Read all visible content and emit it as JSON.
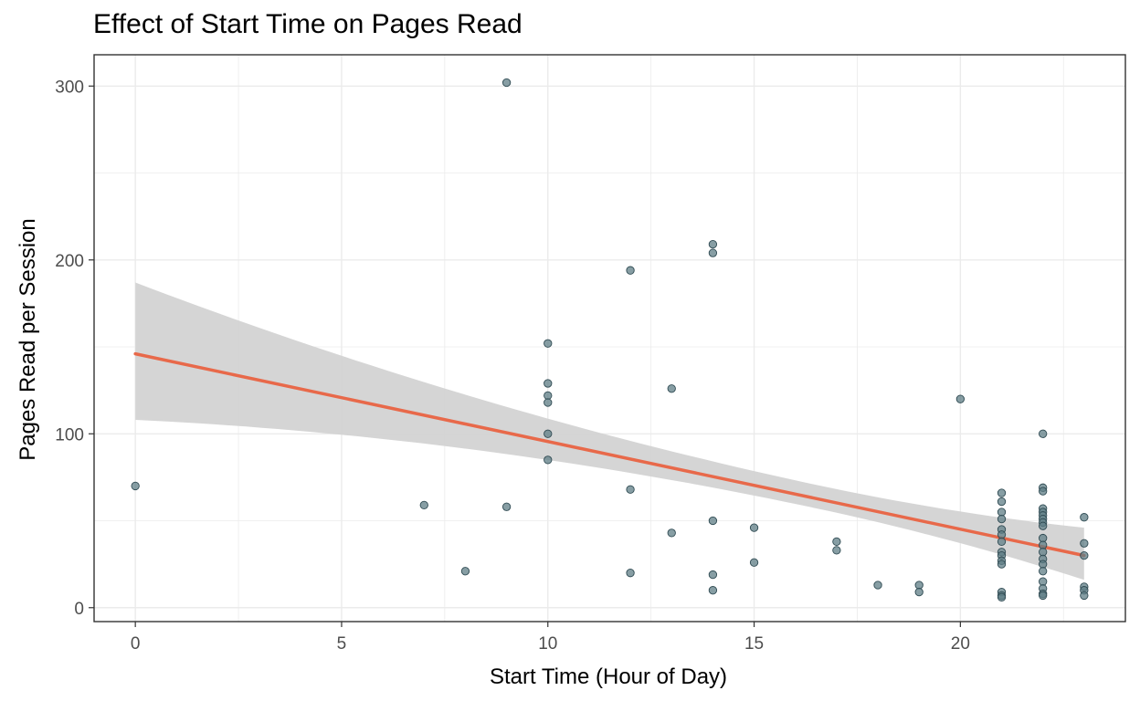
{
  "chart_data": {
    "type": "scatter",
    "title": "Effect of Start Time on Pages Read",
    "xlabel": "Start Time (Hour of Day)",
    "ylabel": "Pages Read per Session",
    "xlim": [
      -1,
      24
    ],
    "ylim": [
      -8,
      318
    ],
    "x_ticks": [
      0,
      5,
      10,
      15,
      20
    ],
    "y_ticks": [
      0,
      100,
      200,
      300
    ],
    "grid": true,
    "legend": "none",
    "colors": {
      "points": "#5f7d86",
      "point_outline": "#2f4a52",
      "trend": "#e8694a",
      "ribbon": "#d3d3d3",
      "grid": "#ebebeb",
      "panel_border": "#333333"
    },
    "points": [
      [
        0,
        70
      ],
      [
        7,
        59
      ],
      [
        8,
        21
      ],
      [
        9,
        302
      ],
      [
        9,
        58
      ],
      [
        10,
        152
      ],
      [
        10,
        129
      ],
      [
        10,
        122
      ],
      [
        10,
        118
      ],
      [
        10,
        100
      ],
      [
        10,
        85
      ],
      [
        12,
        194
      ],
      [
        12,
        68
      ],
      [
        12,
        20
      ],
      [
        13,
        126
      ],
      [
        13,
        43
      ],
      [
        14,
        209
      ],
      [
        14,
        204
      ],
      [
        14,
        50
      ],
      [
        14,
        19
      ],
      [
        14,
        10
      ],
      [
        15,
        46
      ],
      [
        15,
        26
      ],
      [
        17,
        38
      ],
      [
        17,
        33
      ],
      [
        18,
        13
      ],
      [
        19,
        13
      ],
      [
        19,
        9
      ],
      [
        20,
        120
      ],
      [
        21,
        66
      ],
      [
        21,
        61
      ],
      [
        21,
        55
      ],
      [
        21,
        51
      ],
      [
        21,
        45
      ],
      [
        21,
        42
      ],
      [
        21,
        38
      ],
      [
        21,
        32
      ],
      [
        21,
        30
      ],
      [
        21,
        27
      ],
      [
        21,
        25
      ],
      [
        21,
        9
      ],
      [
        21,
        7
      ],
      [
        21,
        6
      ],
      [
        22,
        100
      ],
      [
        22,
        69
      ],
      [
        22,
        67
      ],
      [
        22,
        57
      ],
      [
        22,
        55
      ],
      [
        22,
        53
      ],
      [
        22,
        51
      ],
      [
        22,
        49
      ],
      [
        22,
        47
      ],
      [
        22,
        40
      ],
      [
        22,
        36
      ],
      [
        22,
        32
      ],
      [
        22,
        28
      ],
      [
        22,
        25
      ],
      [
        22,
        21
      ],
      [
        22,
        15
      ],
      [
        22,
        11
      ],
      [
        22,
        8
      ],
      [
        22,
        7
      ],
      [
        23,
        52
      ],
      [
        23,
        37
      ],
      [
        23,
        30
      ],
      [
        23,
        12
      ],
      [
        23,
        10
      ],
      [
        23,
        7
      ]
    ],
    "trend": {
      "method": "linear fit",
      "x": [
        0,
        23
      ],
      "y": [
        146,
        30
      ],
      "ci_lower": [
        108,
        16
      ],
      "ci_upper": [
        187,
        46
      ]
    }
  }
}
